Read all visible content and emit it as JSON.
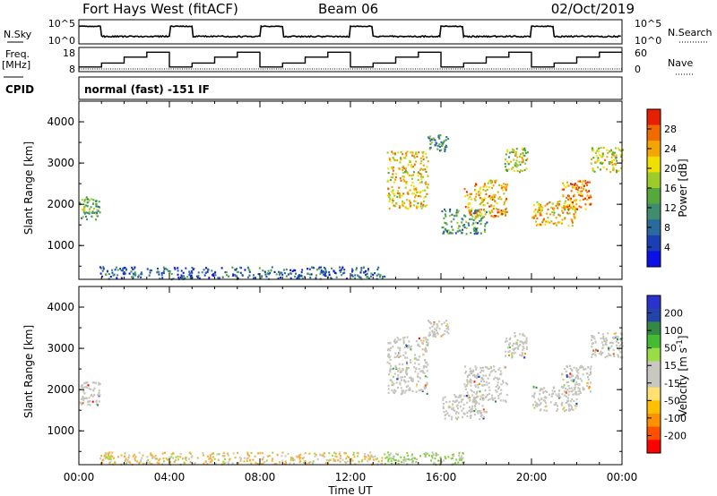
{
  "header": {
    "station": "Fort Hays West (fitACF)",
    "beam": "Beam 06",
    "date": "02/Oct/2019"
  },
  "sky_panel": {
    "left_label": "N.Sky",
    "right_label": "N.Search",
    "left_ticks": [
      "10^5",
      "10^0"
    ],
    "right_ticks": [
      "10^5",
      "10^0"
    ]
  },
  "freq_panel": {
    "left_label_1": "Freq.",
    "left_label_2": "[MHz]",
    "right_label": "Nave",
    "left_ticks": [
      "18",
      "8"
    ],
    "right_ticks": [
      "60",
      "0"
    ]
  },
  "cpid": {
    "label": "CPID",
    "mode": "normal (fast) -151 IF"
  },
  "time_axis": {
    "label": "Time UT",
    "ticks": [
      "00:00",
      "04:00",
      "08:00",
      "12:00",
      "16:00",
      "20:00",
      "00:00"
    ]
  },
  "colors": {
    "power": [
      "#0a10e6",
      "#1a3fb4",
      "#2a6a9e",
      "#3f8c6e",
      "#55a83c",
      "#9ccb2a",
      "#f0e000",
      "#f5a500",
      "#f06a00",
      "#e62000"
    ],
    "velocity": [
      "#ff0000",
      "#ff5000",
      "#ff9000",
      "#ffc000",
      "#ffe070",
      "#c8c8c0",
      "#c8c8c0",
      "#99dd44",
      "#44bb33",
      "#338844",
      "#2244aa",
      "#2a32cc"
    ]
  },
  "chart_data": [
    {
      "type": "heatmap",
      "title": "Power",
      "ylabel": "Slant Range [km]",
      "colorbar_label": "Power [dB]",
      "colorbar_ticks": [
        "28",
        "24",
        "20",
        "16",
        "12",
        "8",
        "4"
      ],
      "x_unit": "hour UT",
      "xlim": [
        0,
        24
      ],
      "ylim": [
        180,
        4500
      ],
      "y_ticks": [
        1000,
        2000,
        3000,
        4000
      ],
      "echo_regions": [
        {
          "t": [
            0.0,
            0.9
          ],
          "range": [
            1650,
            2200
          ],
          "power_db": 12
        },
        {
          "t": [
            0.9,
            13.5
          ],
          "range": [
            200,
            500
          ],
          "power_db": 6
        },
        {
          "t": [
            13.6,
            15.4
          ],
          "range": [
            1900,
            3300
          ],
          "power_db": 20
        },
        {
          "t": [
            15.4,
            16.3
          ],
          "range": [
            3300,
            3700
          ],
          "power_db": 10
        },
        {
          "t": [
            16.0,
            18.0
          ],
          "range": [
            1300,
            1900
          ],
          "power_db": 10
        },
        {
          "t": [
            17.0,
            18.9
          ],
          "range": [
            1700,
            2600
          ],
          "power_db": 22
        },
        {
          "t": [
            18.8,
            19.8
          ],
          "range": [
            2800,
            3400
          ],
          "power_db": 16
        },
        {
          "t": [
            20.0,
            22.0
          ],
          "range": [
            1500,
            2100
          ],
          "power_db": 20
        },
        {
          "t": [
            21.3,
            22.6
          ],
          "range": [
            1900,
            2600
          ],
          "power_db": 24
        },
        {
          "t": [
            22.6,
            24.0
          ],
          "range": [
            2800,
            3400
          ],
          "power_db": 18
        }
      ]
    },
    {
      "type": "heatmap",
      "title": "Velocity",
      "ylabel": "Slant Range [km]",
      "colorbar_label": "Velocity [m s^-1]",
      "colorbar_ticks": [
        "200",
        "100",
        "50",
        "15",
        "-15",
        "-50",
        "-100",
        "-200"
      ],
      "x_unit": "hour UT",
      "xlim": [
        0,
        24
      ],
      "ylim": [
        180,
        4500
      ],
      "y_ticks": [
        1000,
        2000,
        3000,
        4000
      ],
      "echo_regions": [
        {
          "t": [
            0.0,
            0.9
          ],
          "range": [
            1650,
            2200
          ],
          "velocity": 0
        },
        {
          "t": [
            0.9,
            13.5
          ],
          "range": [
            200,
            500
          ],
          "velocity": -40
        },
        {
          "t": [
            13.5,
            17.0
          ],
          "range": [
            200,
            500
          ],
          "velocity": 40
        },
        {
          "t": [
            13.6,
            15.4
          ],
          "range": [
            1900,
            3300
          ],
          "velocity": 0
        },
        {
          "t": [
            15.4,
            16.3
          ],
          "range": [
            3300,
            3700
          ],
          "velocity": 0
        },
        {
          "t": [
            16.0,
            18.0
          ],
          "range": [
            1300,
            1900
          ],
          "velocity": 0
        },
        {
          "t": [
            17.0,
            18.9
          ],
          "range": [
            1700,
            2600
          ],
          "velocity": 0
        },
        {
          "t": [
            18.8,
            19.8
          ],
          "range": [
            2800,
            3400
          ],
          "velocity": 0
        },
        {
          "t": [
            20.0,
            22.0
          ],
          "range": [
            1500,
            2100
          ],
          "velocity": 0
        },
        {
          "t": [
            21.3,
            22.6
          ],
          "range": [
            1900,
            2600
          ],
          "velocity": 0
        },
        {
          "t": [
            22.6,
            24.0
          ],
          "range": [
            2800,
            3400
          ],
          "velocity": 0
        }
      ]
    }
  ]
}
